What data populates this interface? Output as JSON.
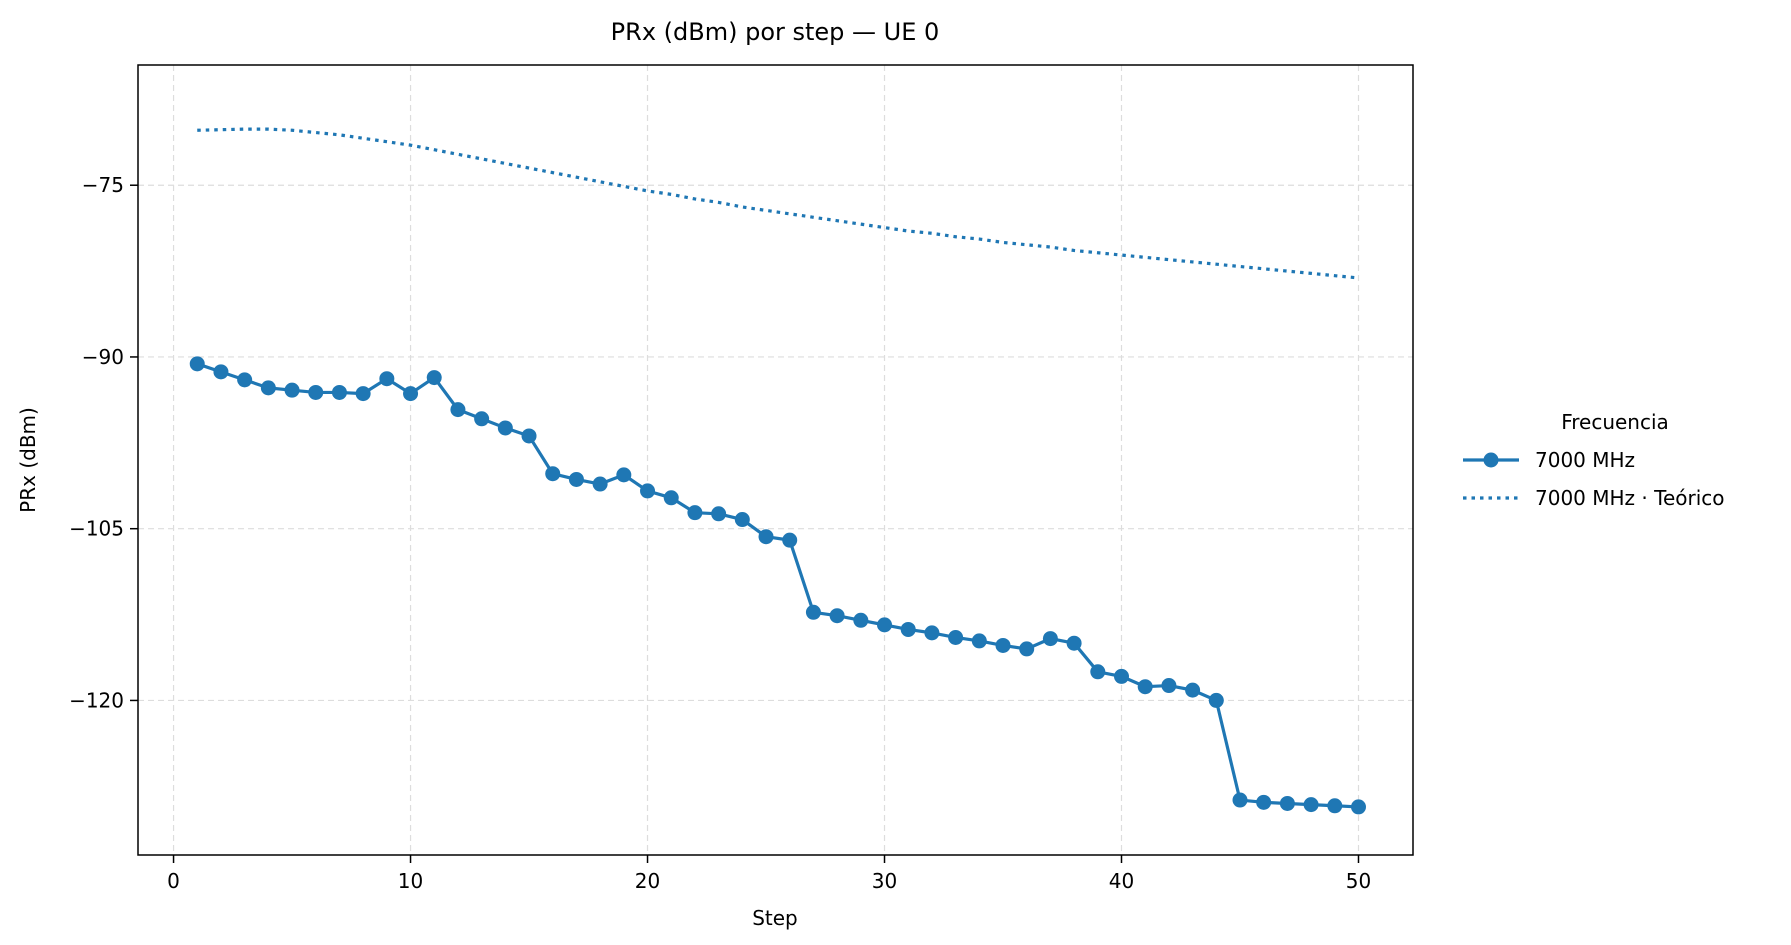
{
  "colors": {
    "series": "#1f77b4",
    "grid": "#dddddd",
    "axis": "#000000"
  },
  "chart_data": {
    "type": "line",
    "title": "PRx (dBm) por step — UE 0",
    "xlabel": "Step",
    "ylabel": "PRx (dBm)",
    "xlim": [
      -1.5,
      52.3
    ],
    "ylim": [
      -133.5,
      -64.5
    ],
    "xticks": [
      0,
      10,
      20,
      30,
      40,
      50
    ],
    "yticks": [
      -75,
      -90,
      -105,
      -120
    ],
    "xtick_labels": [
      "0",
      "10",
      "20",
      "30",
      "40",
      "50"
    ],
    "ytick_labels": [
      "−75",
      "−90",
      "−105",
      "−120"
    ],
    "grid": true,
    "legend": {
      "title": "Frecuencia",
      "placement": "outside-right"
    },
    "x": [
      1,
      2,
      3,
      4,
      5,
      6,
      7,
      8,
      9,
      10,
      11,
      12,
      13,
      14,
      15,
      16,
      17,
      18,
      19,
      20,
      21,
      22,
      23,
      24,
      25,
      26,
      27,
      28,
      29,
      30,
      31,
      32,
      33,
      34,
      35,
      36,
      37,
      38,
      39,
      40,
      41,
      42,
      43,
      44,
      45,
      46,
      47,
      48,
      49,
      50
    ],
    "series": [
      {
        "name": "7000 MHz",
        "style": "solid-marker",
        "values": [
          -90.6,
          -91.3,
          -92.0,
          -92.7,
          -92.9,
          -93.1,
          -93.1,
          -93.2,
          -91.9,
          -93.2,
          -91.8,
          -94.6,
          -95.4,
          -96.2,
          -96.9,
          -100.2,
          -100.7,
          -101.1,
          -100.3,
          -101.7,
          -102.3,
          -103.6,
          -103.7,
          -104.2,
          -105.7,
          -106.0,
          -112.3,
          -112.6,
          -113.0,
          -113.4,
          -113.8,
          -114.1,
          -114.5,
          -114.8,
          -115.2,
          -115.5,
          -114.6,
          -115.0,
          -117.5,
          -117.9,
          -118.8,
          -118.7,
          -119.1,
          -120.0,
          -128.7,
          -128.9,
          -129.0,
          -129.1,
          -129.2,
          -129.3
        ]
      },
      {
        "name": "7000 MHz · Teórico",
        "style": "dotted",
        "values": [
          -70.2,
          -70.15,
          -70.1,
          -70.1,
          -70.2,
          -70.4,
          -70.6,
          -70.9,
          -71.2,
          -71.5,
          -71.9,
          -72.3,
          -72.7,
          -73.1,
          -73.5,
          -73.9,
          -74.3,
          -74.7,
          -75.1,
          -75.5,
          -75.8,
          -76.2,
          -76.5,
          -76.9,
          -77.2,
          -77.5,
          -77.8,
          -78.1,
          -78.4,
          -78.7,
          -79.0,
          -79.2,
          -79.5,
          -79.7,
          -80.0,
          -80.2,
          -80.4,
          -80.7,
          -80.9,
          -81.1,
          -81.3,
          -81.5,
          -81.7,
          -81.9,
          -82.1,
          -82.3,
          -82.5,
          -82.7,
          -82.9,
          -83.1
        ]
      }
    ]
  }
}
